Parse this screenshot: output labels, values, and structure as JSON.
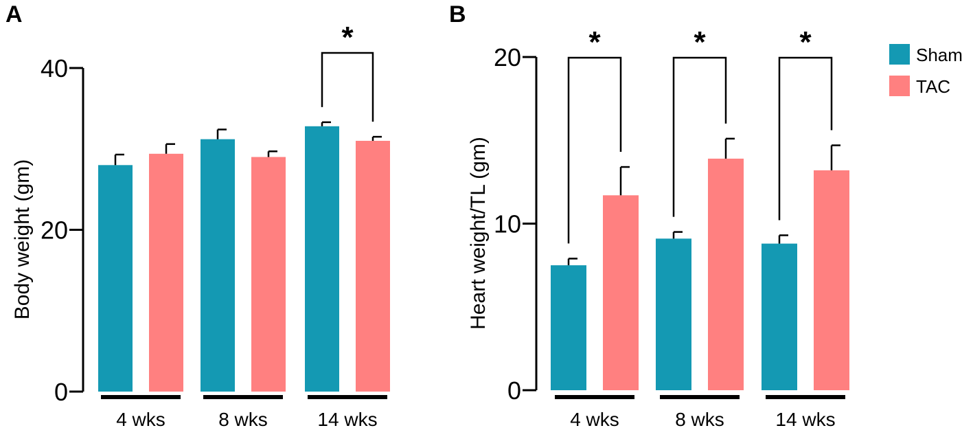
{
  "legend": [
    {
      "name": "Sham",
      "color": "#1499b3"
    },
    {
      "name": "TAC",
      "color": "#ff8080"
    }
  ],
  "chart_data": [
    {
      "panel": "A",
      "type": "bar",
      "categories": [
        "4 wks",
        "8 wks",
        "14 wks"
      ],
      "series": [
        {
          "name": "Sham",
          "values": [
            28,
            31.2,
            32.8
          ],
          "errors": [
            1.3,
            1.2,
            0.5
          ]
        },
        {
          "name": "TAC",
          "values": [
            29.4,
            29,
            31
          ],
          "errors": [
            1.2,
            0.7,
            0.5
          ]
        }
      ],
      "ylabel": "Body weight (gm)",
      "ylim": [
        0,
        40
      ],
      "yticks": [
        0,
        20,
        40
      ],
      "significance": [
        {
          "category": "14 wks",
          "label": "*"
        }
      ]
    },
    {
      "panel": "B",
      "type": "bar",
      "categories": [
        "4 wks",
        "8 wks",
        "14 wks"
      ],
      "series": [
        {
          "name": "Sham",
          "values": [
            7.5,
            9.1,
            8.8
          ],
          "errors": [
            0.4,
            0.4,
            0.5
          ]
        },
        {
          "name": "TAC",
          "values": [
            11.7,
            13.9,
            13.2
          ],
          "errors": [
            1.7,
            1.2,
            1.5
          ]
        }
      ],
      "ylabel": "Heart weight/TL (gm)",
      "ylim": [
        0,
        20
      ],
      "yticks": [
        0,
        10,
        20
      ],
      "significance": [
        {
          "category": "4 wks",
          "label": "*"
        },
        {
          "category": "8 wks",
          "label": "*"
        },
        {
          "category": "14 wks",
          "label": "*"
        }
      ]
    }
  ]
}
